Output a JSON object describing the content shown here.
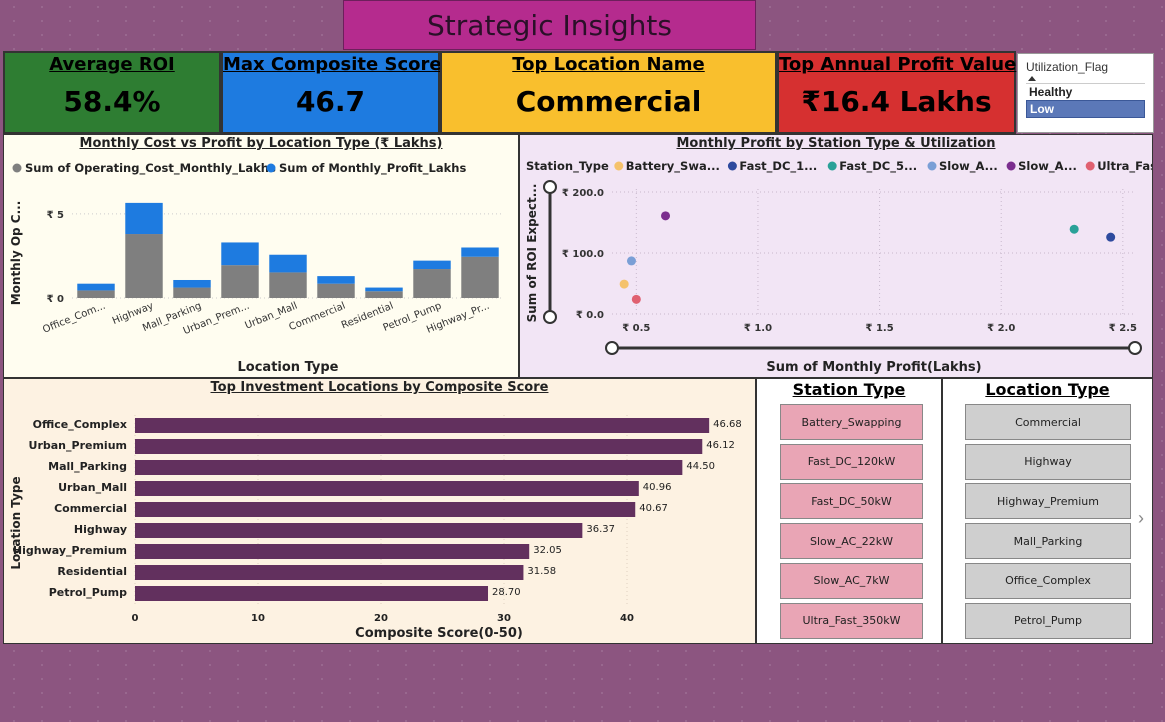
{
  "title": "Strategic Insights",
  "kpis": [
    {
      "label": "Average ROI",
      "value": "58.4%",
      "bg": "#2e7d32"
    },
    {
      "label": "Max Composite Score",
      "value": "46.7",
      "bg": "#1e7be0"
    },
    {
      "label": "Top Location Name",
      "value": "Commercial",
      "bg": "#f9bf2d"
    },
    {
      "label": "Top Annual Profit Value",
      "value": "₹16.4 Lakhs",
      "bg": "#d63030"
    }
  ],
  "utilization_slicer": {
    "title": "Utilization_Flag",
    "options": [
      {
        "label": "Healthy",
        "selected": false
      },
      {
        "label": "Low",
        "selected": true
      }
    ]
  },
  "station_slicer": {
    "title": "Station Type",
    "items": [
      "Battery_Swapping",
      "Fast_DC_120kW",
      "Fast_DC_50kW",
      "Slow_AC_22kW",
      "Slow_AC_7kW",
      "Ultra_Fast_350kW"
    ]
  },
  "location_slicer": {
    "title": "Location Type",
    "items": [
      "Commercial",
      "Highway",
      "Highway_Premium",
      "Mall_Parking",
      "Office_Complex",
      "Petrol_Pump"
    ]
  },
  "colors": {
    "cost": "#7f7f7f",
    "profit": "#1e7be0",
    "hbar": "#62305e"
  },
  "chart_data": [
    {
      "type": "bar",
      "title": "Monthly Cost vs Profit by Location Type (₹ Lakhs)",
      "xlabel": "Location Type",
      "ylabel": "Monthly Op C...",
      "categories": [
        "Office_Com...",
        "Highway",
        "Mall_Parking",
        "Urban_Prem...",
        "Urban_Mall",
        "Commercial",
        "Residential",
        "Petrol_Pump",
        "Highway_Pr..."
      ],
      "series": [
        {
          "name": "Sum of Operating_Cost_Monthly_Lakhs",
          "values": [
            0.45,
            3.8,
            0.62,
            1.95,
            1.52,
            0.85,
            0.4,
            1.72,
            2.45
          ]
        },
        {
          "name": "Sum of Monthly_Profit_Lakhs",
          "values": [
            0.4,
            1.85,
            0.45,
            1.35,
            1.05,
            0.45,
            0.22,
            0.5,
            0.55
          ]
        }
      ],
      "ylim": [
        0,
        6
      ],
      "yticks": [
        {
          "v": 0,
          "label": "₹ 0"
        },
        {
          "v": 5,
          "label": "₹ 5"
        }
      ],
      "stacked": true,
      "legend": "top-left"
    },
    {
      "type": "scatter",
      "title": "Monthly Profit by Station Type & Utilization",
      "xlabel": "Sum of Monthly Profit(Lakhs)",
      "ylabel": "Sum of ROI Expect...",
      "legend_title": "Station_Type",
      "xlim": [
        0.4,
        2.55
      ],
      "ylim": [
        -5,
        205
      ],
      "xticks": [
        {
          "v": 0.5,
          "label": "₹ 0.5"
        },
        {
          "v": 1.0,
          "label": "₹ 1.0"
        },
        {
          "v": 1.5,
          "label": "₹ 1.5"
        },
        {
          "v": 2.0,
          "label": "₹ 2.0"
        },
        {
          "v": 2.5,
          "label": "₹ 2.5"
        }
      ],
      "yticks": [
        {
          "v": 0,
          "label": "₹ 0.0"
        },
        {
          "v": 100,
          "label": "₹ 100.0"
        },
        {
          "v": 200,
          "label": "₹ 200.0"
        }
      ],
      "series": [
        {
          "name": "Battery_Swa...",
          "color": "#f5c26b",
          "points": [
            [
              0.45,
              49
            ]
          ]
        },
        {
          "name": "Fast_DC_1...",
          "color": "#2e4a9e",
          "points": [
            [
              2.45,
              126
            ]
          ]
        },
        {
          "name": "Fast_DC_5...",
          "color": "#2aa198",
          "points": [
            [
              2.3,
              139
            ]
          ]
        },
        {
          "name": "Slow_A...",
          "color": "#7a9fd6",
          "points": [
            [
              0.48,
              87
            ]
          ]
        },
        {
          "name": "Slow_A...",
          "color": "#7b2d8e",
          "points": [
            [
              0.62,
              161
            ]
          ]
        },
        {
          "name": "Ultra_Fast...",
          "color": "#e06070",
          "points": [
            [
              0.5,
              24
            ]
          ]
        }
      ]
    },
    {
      "type": "bar",
      "orientation": "horizontal",
      "title": "Top Investment Locations by Composite Score",
      "xlabel": "Composite Score(0-50)",
      "ylabel": "Location Type",
      "categories": [
        "Office_Complex",
        "Urban_Premium",
        "Mall_Parking",
        "Urban_Mall",
        "Commercial",
        "Highway",
        "Highway_Premium",
        "Residential",
        "Petrol_Pump"
      ],
      "values": [
        46.68,
        46.12,
        44.5,
        40.96,
        40.67,
        36.37,
        32.05,
        31.58,
        28.7
      ],
      "value_labels": [
        "46.68",
        "46.12",
        "44.50",
        "40.96",
        "40.67",
        "36.37",
        "32.05",
        "31.58",
        "28.70"
      ],
      "xlim": [
        0,
        50
      ],
      "xticks": [
        {
          "v": 0,
          "label": "0"
        },
        {
          "v": 10,
          "label": "10"
        },
        {
          "v": 20,
          "label": "20"
        },
        {
          "v": 30,
          "label": "30"
        },
        {
          "v": 40,
          "label": "40"
        }
      ]
    }
  ]
}
